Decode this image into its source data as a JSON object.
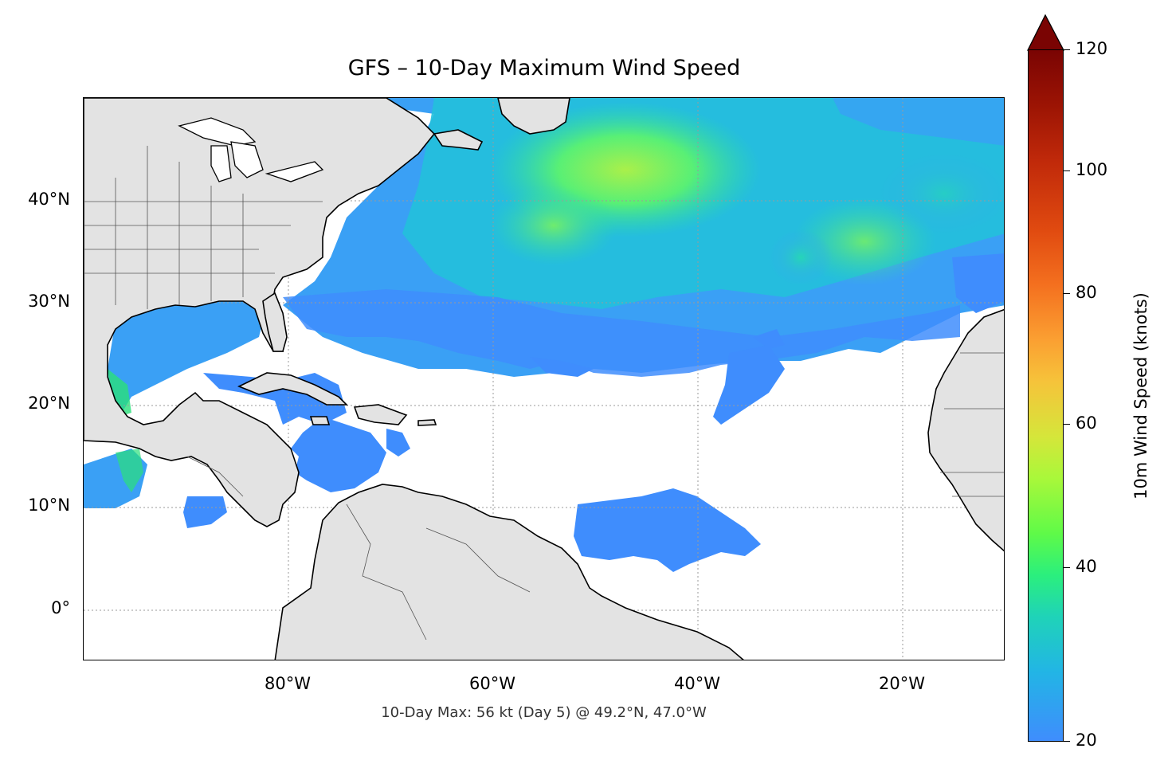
{
  "title": "GFS – 10-Day Maximum Wind Speed",
  "footnote": "10-Day Max: 56 kt (Day 5) @ 49.2°N, 47.0°W",
  "map": {
    "lon_range": [
      -100,
      -10
    ],
    "lat_range": [
      -5,
      50
    ],
    "x_ticks": [
      "80°W",
      "60°W",
      "40°W",
      "20°W"
    ],
    "y_ticks": [
      "40°N",
      "30°N",
      "20°N",
      "10°N",
      "0°"
    ],
    "gridlines": "dotted"
  },
  "colorbar": {
    "label": "10m Wind Speed (knots)",
    "ticks": [
      "120",
      "100",
      "80",
      "60",
      "40",
      "20"
    ],
    "range": [
      20,
      120
    ],
    "extend": "max",
    "colormap": "turbo"
  },
  "colors": {
    "land": "#e3e3e3",
    "ocean": "#ffffff",
    "wind_low": "#3f8dfd",
    "wind_mid": "#2bef7d",
    "wind_high": "#a9f83a"
  }
}
